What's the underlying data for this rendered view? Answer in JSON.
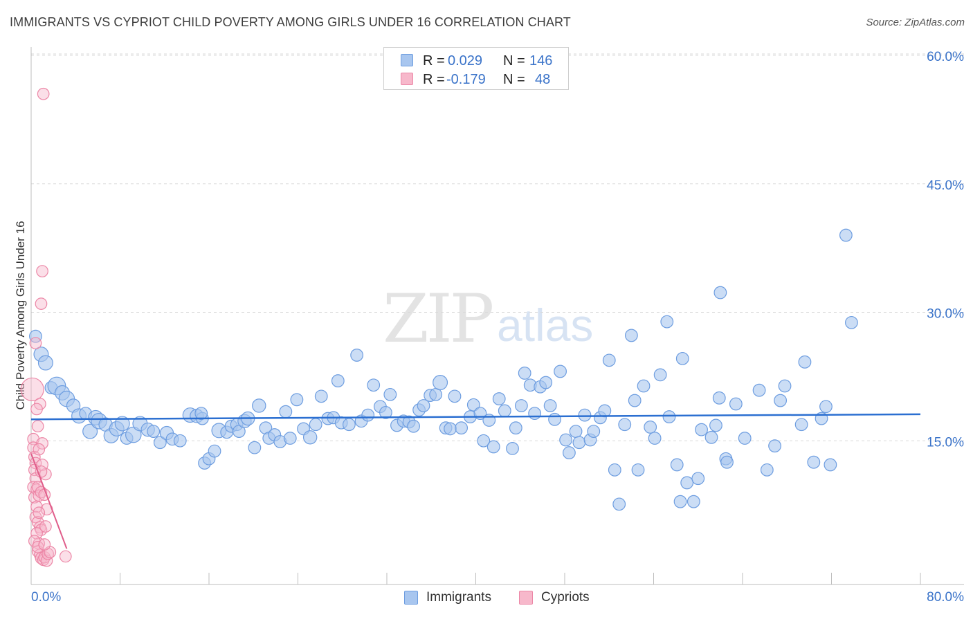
{
  "header": {
    "title": "IMMIGRANTS VS CYPRIOT CHILD POVERTY AMONG GIRLS UNDER 16 CORRELATION CHART",
    "source": "Source: ZipAtlas.com"
  },
  "watermark": {
    "part1": "ZIP",
    "part2": "atlas"
  },
  "legend": {
    "rows": [
      {
        "r_label": "R =",
        "r_value": "0.029",
        "n_label": "N =",
        "n_value": "146"
      },
      {
        "r_label": "R =",
        "r_value": "-0.179",
        "n_label": "N =",
        "n_value": "48"
      }
    ]
  },
  "bottom_legend": {
    "immigrants": "Immigrants",
    "cypriots": "Cypriots"
  },
  "axis": {
    "ylabel": "Child Poverty Among Girls Under 16",
    "x_min_label": "0.0%",
    "x_max_label": "80.0%",
    "y_ticks": [
      "15.0%",
      "30.0%",
      "45.0%",
      "60.0%"
    ]
  },
  "colors": {
    "immigrants_fill": "#a8c6ef",
    "immigrants_stroke": "#6d9de0",
    "immigrants_line": "#2b6fd1",
    "cypriots_fill": "#f7b8cb",
    "cypriots_stroke": "#ec86a6",
    "cypriots_line": "#e05d8a",
    "grid": "#d9d9d9",
    "tick_text": "#3a73c9"
  },
  "chart_data": {
    "type": "scatter",
    "title": "IMMIGRANTS VS CYPRIOT CHILD POVERTY AMONG GIRLS UNDER 16 CORRELATION CHART",
    "xlabel": "",
    "ylabel": "Child Poverty Among Girls Under 16",
    "xlim": [
      0,
      80
    ],
    "ylim": [
      0,
      63
    ],
    "y_ticks": [
      15,
      30,
      45,
      60
    ],
    "grid": true,
    "legend_position": "top-center",
    "series": [
      {
        "name": "Immigrants",
        "r": 0.029,
        "n": 146,
        "trend": {
          "x": [
            0,
            80
          ],
          "y": [
            17.5,
            18.1
          ]
        },
        "points": [
          [
            0.4,
            27.2,
            11
          ],
          [
            0.9,
            25.1,
            13
          ],
          [
            1.3,
            24.1,
            13
          ],
          [
            1.8,
            21.2,
            11
          ],
          [
            2.3,
            21.4,
            16
          ],
          [
            2.8,
            20.6,
            13
          ],
          [
            3.2,
            19.9,
            14
          ],
          [
            3.8,
            19.1,
            12
          ],
          [
            4.3,
            17.9,
            13
          ],
          [
            4.9,
            18.2,
            11
          ],
          [
            5.3,
            16.1,
            13
          ],
          [
            5.8,
            17.7,
            13
          ],
          [
            6.1,
            17.3,
            14
          ],
          [
            6.7,
            16.9,
            12
          ],
          [
            7.2,
            15.6,
            13
          ],
          [
            7.7,
            16.4,
            13
          ],
          [
            8.2,
            17.0,
            13
          ],
          [
            8.6,
            15.3,
            11
          ],
          [
            9.2,
            15.7,
            14
          ],
          [
            9.8,
            17.0,
            13
          ],
          [
            10.5,
            16.3,
            12
          ],
          [
            11.0,
            16.1,
            11
          ],
          [
            11.6,
            14.8,
            11
          ],
          [
            12.2,
            15.9,
            12
          ],
          [
            12.7,
            15.2,
            11
          ],
          [
            13.4,
            15.0,
            11
          ],
          [
            14.3,
            18.0,
            13
          ],
          [
            14.9,
            17.9,
            12
          ],
          [
            15.4,
            17.6,
            11
          ],
          [
            15.3,
            18.2,
            11
          ],
          [
            15.6,
            12.4,
            11
          ],
          [
            16.0,
            12.9,
            11
          ],
          [
            16.5,
            13.8,
            11
          ],
          [
            16.9,
            16.2,
            13
          ],
          [
            17.6,
            16.0,
            11
          ],
          [
            18.0,
            16.7,
            11
          ],
          [
            18.5,
            16.9,
            11
          ],
          [
            18.7,
            16.1,
            11
          ],
          [
            19.2,
            17.3,
            12
          ],
          [
            19.5,
            17.6,
            12
          ],
          [
            20.1,
            14.2,
            11
          ],
          [
            20.5,
            19.1,
            12
          ],
          [
            21.1,
            16.5,
            11
          ],
          [
            21.4,
            15.3,
            11
          ],
          [
            21.9,
            15.7,
            11
          ],
          [
            22.4,
            14.9,
            11
          ],
          [
            22.9,
            18.4,
            11
          ],
          [
            23.3,
            15.3,
            11
          ],
          [
            23.9,
            19.8,
            11
          ],
          [
            24.5,
            16.4,
            11
          ],
          [
            25.1,
            15.4,
            12
          ],
          [
            25.6,
            16.9,
            11
          ],
          [
            26.1,
            20.2,
            11
          ],
          [
            26.7,
            17.6,
            11
          ],
          [
            27.2,
            17.7,
            11
          ],
          [
            27.6,
            22.0,
            11
          ],
          [
            27.9,
            17.1,
            11
          ],
          [
            28.6,
            16.9,
            11
          ],
          [
            29.3,
            25.0,
            11
          ],
          [
            29.7,
            17.3,
            11
          ],
          [
            30.3,
            18.0,
            11
          ],
          [
            30.8,
            21.5,
            11
          ],
          [
            31.4,
            19.0,
            11
          ],
          [
            31.9,
            18.3,
            11
          ],
          [
            32.3,
            20.4,
            11
          ],
          [
            32.9,
            16.8,
            11
          ],
          [
            33.5,
            17.3,
            11
          ],
          [
            34.0,
            17.2,
            11
          ],
          [
            34.4,
            16.7,
            11
          ],
          [
            34.9,
            18.6,
            11
          ],
          [
            35.3,
            19.1,
            11
          ],
          [
            35.9,
            20.3,
            11
          ],
          [
            36.4,
            20.4,
            11
          ],
          [
            36.8,
            21.8,
            13
          ],
          [
            37.3,
            16.5,
            11
          ],
          [
            37.7,
            16.4,
            11
          ],
          [
            38.1,
            20.2,
            11
          ],
          [
            38.7,
            16.5,
            11
          ],
          [
            39.5,
            17.8,
            11
          ],
          [
            39.8,
            19.2,
            11
          ],
          [
            40.4,
            18.2,
            11
          ],
          [
            40.7,
            15.0,
            11
          ],
          [
            41.2,
            17.4,
            11
          ],
          [
            41.6,
            14.3,
            11
          ],
          [
            42.1,
            19.9,
            11
          ],
          [
            42.6,
            18.5,
            11
          ],
          [
            43.3,
            14.1,
            11
          ],
          [
            43.6,
            16.5,
            11
          ],
          [
            44.1,
            19.1,
            11
          ],
          [
            44.4,
            22.9,
            11
          ],
          [
            44.9,
            21.5,
            11
          ],
          [
            45.3,
            18.2,
            11
          ],
          [
            45.8,
            21.3,
            11
          ],
          [
            46.3,
            21.8,
            11
          ],
          [
            46.7,
            19.1,
            11
          ],
          [
            47.1,
            17.5,
            11
          ],
          [
            47.6,
            23.1,
            11
          ],
          [
            48.1,
            15.1,
            11
          ],
          [
            48.4,
            13.6,
            11
          ],
          [
            49.0,
            16.1,
            11
          ],
          [
            49.3,
            14.8,
            11
          ],
          [
            49.8,
            18.0,
            11
          ],
          [
            50.3,
            15.1,
            11
          ],
          [
            50.6,
            16.1,
            11
          ],
          [
            51.2,
            17.7,
            11
          ],
          [
            51.6,
            18.5,
            11
          ],
          [
            52.0,
            24.4,
            11
          ],
          [
            52.5,
            11.6,
            11
          ],
          [
            52.9,
            7.6,
            11
          ],
          [
            53.4,
            16.9,
            11
          ],
          [
            54.0,
            27.3,
            11
          ],
          [
            54.3,
            19.7,
            11
          ],
          [
            54.6,
            11.6,
            11
          ],
          [
            55.1,
            21.4,
            11
          ],
          [
            55.7,
            16.6,
            11
          ],
          [
            56.1,
            15.3,
            11
          ],
          [
            56.6,
            22.7,
            11
          ],
          [
            57.2,
            28.9,
            11
          ],
          [
            57.4,
            17.8,
            11
          ],
          [
            58.1,
            12.2,
            11
          ],
          [
            58.6,
            24.6,
            11
          ],
          [
            58.4,
            7.9,
            11
          ],
          [
            59.0,
            10.1,
            11
          ],
          [
            59.6,
            7.9,
            11
          ],
          [
            60.0,
            10.6,
            11
          ],
          [
            60.3,
            16.3,
            11
          ],
          [
            61.2,
            15.4,
            11
          ],
          [
            61.6,
            16.8,
            11
          ],
          [
            61.9,
            20.0,
            11
          ],
          [
            62.5,
            12.9,
            11
          ],
          [
            62.6,
            12.5,
            11
          ],
          [
            63.4,
            19.3,
            11
          ],
          [
            64.2,
            15.3,
            11
          ],
          [
            65.5,
            20.9,
            11
          ],
          [
            66.2,
            11.6,
            11
          ],
          [
            66.9,
            14.4,
            11
          ],
          [
            67.4,
            19.7,
            11
          ],
          [
            67.8,
            21.4,
            11
          ],
          [
            69.3,
            16.9,
            11
          ],
          [
            69.6,
            24.2,
            11
          ],
          [
            70.4,
            12.5,
            11
          ],
          [
            71.1,
            17.6,
            11
          ],
          [
            71.5,
            19.0,
            11
          ],
          [
            71.9,
            12.2,
            11
          ],
          [
            73.3,
            39.0,
            11
          ],
          [
            73.8,
            28.8,
            11
          ],
          [
            62.0,
            32.3,
            11
          ]
        ]
      },
      {
        "name": "Cypriots",
        "r": -0.179,
        "n": 48,
        "trend": {
          "x": [
            0.0,
            3.2
          ],
          "y": [
            13.5,
            2.4
          ]
        },
        "points": [
          [
            0.1,
            21.0,
            22
          ],
          [
            0.2,
            15.2,
            11
          ],
          [
            0.2,
            14.2,
            11
          ],
          [
            0.3,
            13.1,
            11
          ],
          [
            0.4,
            12.4,
            11
          ],
          [
            0.3,
            11.6,
            11
          ],
          [
            0.4,
            10.6,
            11
          ],
          [
            0.2,
            9.6,
            11
          ],
          [
            0.5,
            9.3,
            11
          ],
          [
            0.6,
            9.6,
            11
          ],
          [
            0.3,
            8.4,
            11
          ],
          [
            0.7,
            8.6,
            11
          ],
          [
            0.5,
            7.3,
            11
          ],
          [
            0.4,
            6.1,
            11
          ],
          [
            0.6,
            5.5,
            11
          ],
          [
            0.8,
            4.9,
            11
          ],
          [
            0.9,
            4.6,
            11
          ],
          [
            0.5,
            4.2,
            11
          ],
          [
            0.7,
            3.0,
            11
          ],
          [
            0.6,
            2.1,
            11
          ],
          [
            0.8,
            1.7,
            11
          ],
          [
            0.9,
            1.3,
            11
          ],
          [
            1.1,
            1.1,
            11
          ],
          [
            1.2,
            1.4,
            11
          ],
          [
            1.4,
            1.0,
            11
          ],
          [
            1.5,
            1.8,
            11
          ],
          [
            1.7,
            2.0,
            11
          ],
          [
            1.0,
            14.7,
            11
          ],
          [
            1.3,
            11.1,
            11
          ],
          [
            0.9,
            9.0,
            11
          ],
          [
            1.2,
            8.7,
            11
          ],
          [
            1.0,
            12.2,
            11
          ],
          [
            0.8,
            19.3,
            11
          ],
          [
            0.9,
            31.0,
            11
          ],
          [
            1.0,
            34.8,
            11
          ],
          [
            1.1,
            55.5,
            11
          ],
          [
            0.4,
            26.4,
            11
          ],
          [
            0.5,
            18.7,
            11
          ],
          [
            0.6,
            16.7,
            11
          ],
          [
            0.7,
            14.0,
            11
          ],
          [
            0.9,
            11.4,
            11
          ],
          [
            1.4,
            7.0,
            11
          ],
          [
            1.3,
            5.0,
            11
          ],
          [
            0.7,
            6.6,
            11
          ],
          [
            3.1,
            1.5,
            11
          ],
          [
            0.3,
            3.3,
            11
          ],
          [
            0.6,
            2.6,
            11
          ],
          [
            1.2,
            2.9,
            11
          ]
        ]
      }
    ]
  }
}
